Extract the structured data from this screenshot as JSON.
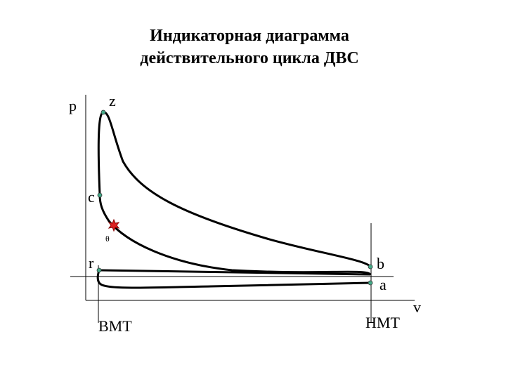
{
  "header": {
    "title_line1": "Индикаторная диаграмма",
    "title_line2": "действительного цикла ДВС"
  },
  "labels": {
    "p": "p",
    "z": "z",
    "c": "c",
    "theta": "θ",
    "r": "r",
    "b": "b",
    "a": "a",
    "v": "v",
    "bmt": "ВМТ",
    "nmt": "НМТ"
  }
}
